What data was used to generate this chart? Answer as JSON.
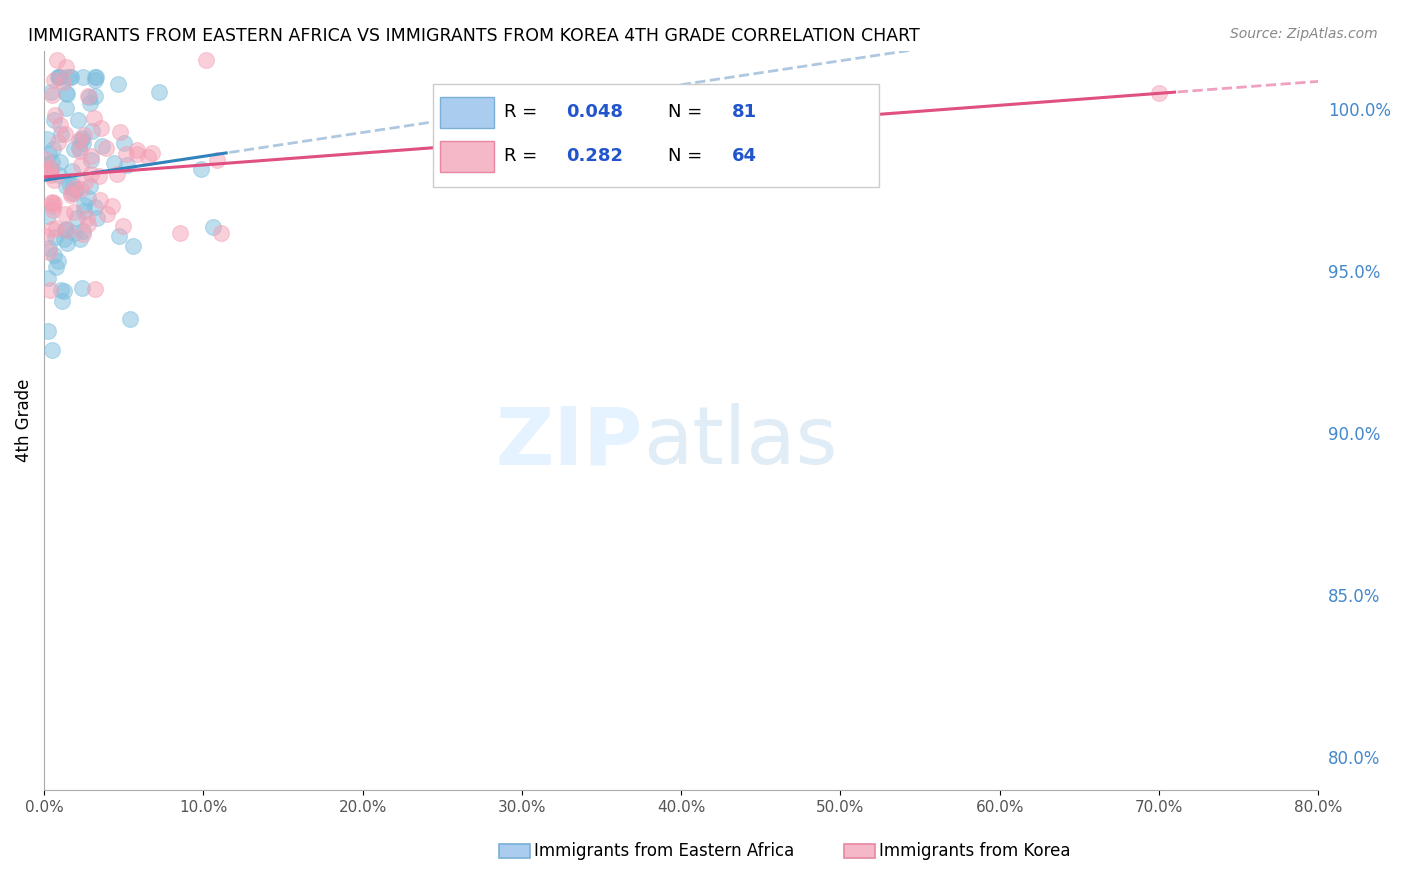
{
  "title": "IMMIGRANTS FROM EASTERN AFRICA VS IMMIGRANTS FROM KOREA 4TH GRADE CORRELATION CHART",
  "source": "Source: ZipAtlas.com",
  "ylabel": "4th Grade",
  "y_right_ticks": [
    80.0,
    85.0,
    90.0,
    95.0,
    100.0
  ],
  "x_range": [
    0.0,
    80.0
  ],
  "y_range": [
    79.0,
    101.8
  ],
  "legend_r1": "0.048",
  "legend_n1": "81",
  "legend_r2": "0.282",
  "legend_n2": "64",
  "color_blue": "#7fbfdf",
  "color_pink": "#f4a0b5",
  "color_blue_line": "#3182bd",
  "color_pink_line": "#e05080",
  "color_blue_dash": "#adc8e0",
  "color_pink_dash": "#f0a0c0",
  "watermark": "ZIPatlas",
  "legend_label1": "Immigrants from Eastern Africa",
  "legend_label2": "Immigrants from Korea"
}
